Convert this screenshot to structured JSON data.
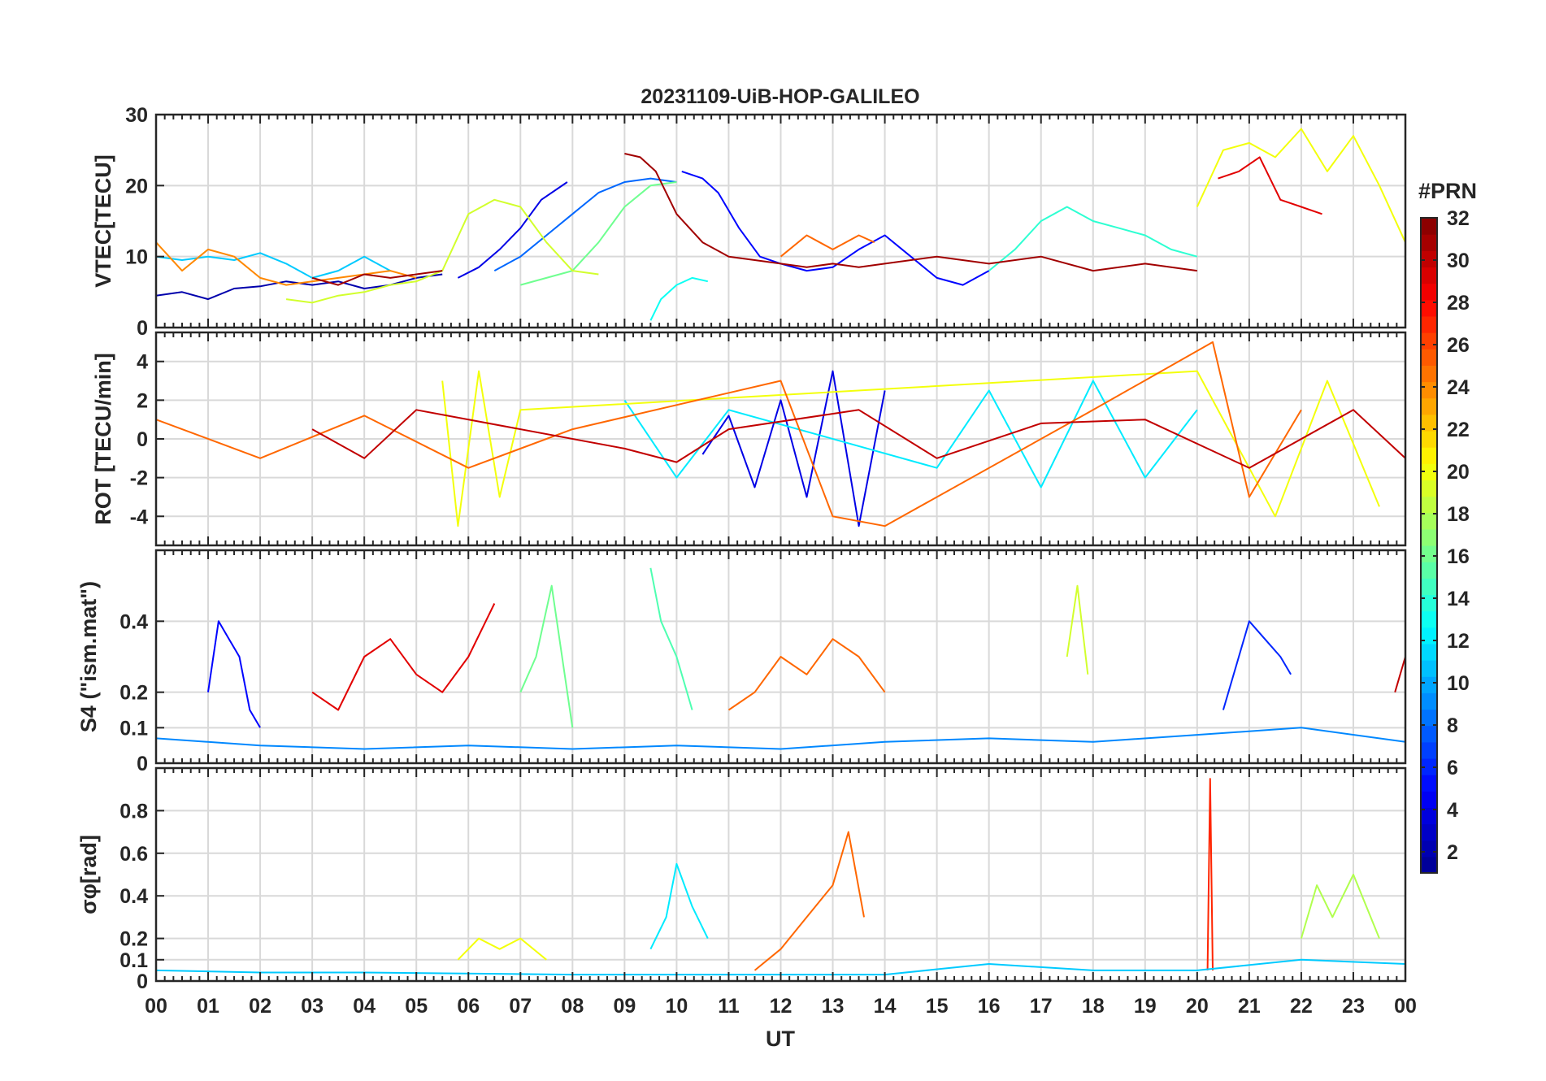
{
  "colors": {
    "axis": "#262626",
    "grid": "#d9d9d9",
    "background": "#ffffff",
    "colormap": [
      "#00008F",
      "#0000FF",
      "#0080FF",
      "#00FFFF",
      "#80FF80",
      "#FFFF00",
      "#FF8000",
      "#FF0000",
      "#800000"
    ]
  },
  "chart_data": [
    {
      "id": "vtec",
      "type": "line",
      "title": "20231109-UiB-HOP-GALILEO",
      "ylabel": "VTEC[TECU]",
      "xlim": [
        0,
        24
      ],
      "ylim": [
        0,
        30
      ],
      "yticks": [
        0,
        10,
        20,
        30
      ],
      "ytick_labels": [
        "0",
        "10",
        "20",
        "30"
      ],
      "series": [
        {
          "prn": 2,
          "x": [
            0.0,
            0.5,
            1.0,
            1.5,
            2.0,
            2.5,
            3.0,
            3.5,
            4.0,
            4.5,
            5.0,
            5.5
          ],
          "y": [
            4.5,
            5.0,
            4.0,
            5.5,
            5.8,
            6.5,
            6.0,
            6.5,
            5.5,
            6.0,
            7.0,
            7.5
          ]
        },
        {
          "prn": 4,
          "x": [
            5.8,
            6.2,
            6.6,
            7.0,
            7.4,
            7.9
          ],
          "y": [
            7.0,
            8.5,
            11.0,
            14.0,
            18.0,
            20.5
          ]
        },
        {
          "prn": 5,
          "x": [
            10.1,
            10.5,
            10.8,
            11.2,
            11.6,
            12.0,
            12.5,
            13.0,
            13.5,
            14.0,
            14.5,
            15.0,
            15.5,
            16.0
          ],
          "y": [
            22.0,
            21.0,
            19.0,
            14.0,
            10.0,
            9.0,
            8.0,
            8.5,
            11.0,
            13.0,
            10.0,
            7.0,
            6.0,
            8.0
          ]
        },
        {
          "prn": 8,
          "x": [
            6.5,
            7.0,
            7.5,
            8.0,
            8.5,
            9.0,
            9.5,
            10.0
          ],
          "y": [
            8.0,
            10.0,
            13.0,
            16.0,
            19.0,
            20.5,
            21.0,
            20.5
          ]
        },
        {
          "prn": 11,
          "x": [
            0.0,
            0.5,
            1.0,
            1.5,
            2.0,
            2.5,
            3.0,
            3.5,
            4.0,
            4.5
          ],
          "y": [
            10.0,
            9.5,
            10.0,
            9.5,
            10.5,
            9.0,
            7.0,
            8.0,
            10.0,
            8.0
          ]
        },
        {
          "prn": 13,
          "x": [
            9.5,
            9.7,
            10.0,
            10.3,
            10.6
          ],
          "y": [
            1.0,
            4.0,
            6.0,
            7.0,
            6.5
          ]
        },
        {
          "prn": 14,
          "x": [
            16.0,
            16.5,
            17.0,
            17.5,
            18.0,
            18.5,
            19.0,
            19.5,
            20.0
          ],
          "y": [
            8.0,
            11.0,
            15.0,
            17.0,
            15.0,
            14.0,
            13.0,
            11.0,
            10.0
          ]
        },
        {
          "prn": 16,
          "x": [
            7.0,
            7.5,
            8.0,
            8.5,
            9.0,
            9.5,
            10.0
          ],
          "y": [
            6.0,
            7.0,
            8.0,
            12.0,
            17.0,
            20.0,
            20.5
          ]
        },
        {
          "prn": 19,
          "x": [
            2.5,
            3.0,
            3.5,
            4.0,
            4.5,
            5.0,
            5.5,
            6.0,
            6.5,
            7.0,
            7.5,
            8.0,
            8.5
          ],
          "y": [
            4.0,
            3.5,
            4.5,
            5.0,
            6.0,
            6.5,
            8.0,
            16.0,
            18.0,
            17.0,
            12.0,
            8.0,
            7.5
          ]
        },
        {
          "prn": 20,
          "x": [
            20.0,
            20.5,
            21.0,
            21.5,
            22.0,
            22.5,
            23.0,
            23.5,
            24.0
          ],
          "y": [
            17.0,
            25.0,
            26.0,
            24.0,
            28.0,
            22.0,
            27.0,
            20.0,
            12.0
          ]
        },
        {
          "prn": 24,
          "x": [
            0.0,
            0.5,
            1.0,
            1.5,
            2.0,
            2.5,
            3.0,
            3.5,
            4.0,
            4.5,
            5.0
          ],
          "y": [
            12.0,
            8.0,
            11.0,
            10.0,
            7.0,
            6.0,
            6.5,
            7.0,
            7.5,
            8.0,
            7.0
          ]
        },
        {
          "prn": 25,
          "x": [
            12.0,
            12.5,
            13.0,
            13.5,
            13.8
          ],
          "y": [
            10.0,
            13.0,
            11.0,
            13.0,
            12.0
          ]
        },
        {
          "prn": 29,
          "x": [
            20.4,
            20.8,
            21.2,
            21.6,
            22.0,
            22.4
          ],
          "y": [
            21.0,
            22.0,
            24.0,
            18.0,
            17.0,
            16.0
          ]
        },
        {
          "prn": 31,
          "x": [
            9.0,
            9.3,
            9.6,
            10.0,
            10.5,
            11.0,
            11.5,
            12.0,
            12.5,
            13.0,
            13.5,
            14.0,
            15.0,
            16.0,
            17.0,
            18.0,
            19.0,
            20.0
          ],
          "y": [
            24.5,
            24.0,
            22.0,
            16.0,
            12.0,
            10.0,
            9.5,
            9.0,
            8.5,
            9.0,
            8.5,
            9.0,
            10.0,
            9.0,
            10.0,
            8.0,
            9.0,
            8.0
          ]
        },
        {
          "prn": 31,
          "x": [
            3.0,
            3.5,
            4.0,
            4.5,
            5.0,
            5.5
          ],
          "y": [
            7.0,
            6.0,
            7.5,
            7.0,
            7.5,
            8.0
          ]
        }
      ]
    },
    {
      "id": "rot",
      "type": "line",
      "ylabel": "ROT [TECU/min]",
      "xlim": [
        0,
        24
      ],
      "ylim": [
        -5.5,
        5.5
      ],
      "yticks": [
        -4,
        -2,
        0,
        2,
        4
      ],
      "ytick_labels": [
        "-4",
        "-2",
        "0",
        "2",
        "4"
      ],
      "series": [
        {
          "prn": 4,
          "x": [
            10.5,
            11.0,
            11.5,
            12.0,
            12.5,
            13.0,
            13.5,
            14.0
          ],
          "y": [
            -0.8,
            1.2,
            -2.5,
            2.0,
            -3.0,
            3.5,
            -4.5,
            2.5
          ]
        },
        {
          "prn": 12,
          "x": [
            9.0,
            10.0,
            11.0,
            15.0,
            16.0,
            17.0,
            18.0,
            19.0,
            20.0
          ],
          "y": [
            2.0,
            -2.0,
            1.5,
            -1.5,
            2.5,
            -2.5,
            3.0,
            -2.0,
            1.5
          ]
        },
        {
          "prn": 20,
          "x": [
            5.5,
            5.8,
            6.2,
            6.6,
            7.0,
            20.0,
            21.5,
            22.5,
            23.5
          ],
          "y": [
            3.0,
            -4.5,
            3.5,
            -3.0,
            1.5,
            3.5,
            -4.0,
            3.0,
            -3.5
          ]
        },
        {
          "prn": 25,
          "x": [
            0.0,
            2.0,
            4.0,
            6.0,
            8.0,
            12.0,
            13.0,
            14.0,
            18.0,
            20.3,
            21.0,
            22.0
          ],
          "y": [
            1.0,
            -1.0,
            1.2,
            -1.5,
            0.5,
            3.0,
            -4.0,
            -4.5,
            1.5,
            5.0,
            -3.0,
            1.5
          ]
        },
        {
          "prn": 30,
          "x": [
            3.0,
            4.0,
            5.0,
            9.0,
            10.0,
            11.0,
            13.5,
            15.0,
            17.0,
            19.0,
            21.0,
            23.0,
            24.0
          ],
          "y": [
            0.5,
            -1.0,
            1.5,
            -0.5,
            -1.2,
            0.5,
            1.5,
            -1.0,
            0.8,
            1.0,
            -1.5,
            1.5,
            -1.0
          ]
        }
      ]
    },
    {
      "id": "s4",
      "type": "line",
      "ylabel": "S4 (\"ism.mat\")",
      "xlim": [
        0,
        24
      ],
      "ylim": [
        0,
        0.6
      ],
      "yticks": [
        0,
        0.1,
        0.2,
        0.4
      ],
      "ytick_labels": [
        "0",
        "0.1",
        "0.2",
        "0.4"
      ],
      "series": [
        {
          "prn": 5,
          "x": [
            1.0,
            1.2,
            1.4,
            1.6,
            1.8,
            2.0
          ],
          "y": [
            0.2,
            0.4,
            0.35,
            0.3,
            0.15,
            0.1
          ]
        },
        {
          "prn": 29,
          "x": [
            3.0,
            3.5,
            4.0,
            4.5,
            5.0,
            5.5,
            6.0,
            6.5
          ],
          "y": [
            0.2,
            0.15,
            0.3,
            0.35,
            0.25,
            0.2,
            0.3,
            0.45
          ]
        },
        {
          "prn": 16,
          "x": [
            7.0,
            7.3,
            7.6,
            8.0
          ],
          "y": [
            0.2,
            0.3,
            0.5,
            0.1
          ]
        },
        {
          "prn": 15,
          "x": [
            9.5,
            9.7,
            10.0,
            10.3
          ],
          "y": [
            0.55,
            0.4,
            0.3,
            0.15
          ]
        },
        {
          "prn": 25,
          "x": [
            11.0,
            11.5,
            12.0,
            12.5,
            13.0,
            13.5,
            14.0
          ],
          "y": [
            0.15,
            0.2,
            0.3,
            0.25,
            0.35,
            0.3,
            0.2
          ]
        },
        {
          "prn": 19,
          "x": [
            17.5,
            17.7,
            17.9
          ],
          "y": [
            0.3,
            0.5,
            0.25
          ]
        },
        {
          "prn": 6,
          "x": [
            20.5,
            20.8,
            21.0,
            21.3,
            21.6,
            21.8
          ],
          "y": [
            0.15,
            0.3,
            0.4,
            0.35,
            0.3,
            0.25
          ]
        },
        {
          "prn": 30,
          "x": [
            23.8,
            24.0
          ],
          "y": [
            0.2,
            0.3
          ]
        },
        {
          "prn": 9,
          "x": [
            0.0,
            2.0,
            4.0,
            6.0,
            8.0,
            10.0,
            12.0,
            14.0,
            16.0,
            18.0,
            20.0,
            22.0,
            24.0
          ],
          "y": [
            0.07,
            0.05,
            0.04,
            0.05,
            0.04,
            0.05,
            0.04,
            0.06,
            0.07,
            0.06,
            0.08,
            0.1,
            0.06
          ]
        }
      ]
    },
    {
      "id": "sigma_phi",
      "type": "line",
      "ylabel": "σφ[rad]",
      "xlabel": "UT",
      "xlim": [
        0,
        24
      ],
      "ylim": [
        0,
        1.0
      ],
      "yticks": [
        0,
        0.1,
        0.2,
        0.4,
        0.6,
        0.8
      ],
      "ytick_labels": [
        "0",
        "0.1",
        "0.2",
        "0.4",
        "0.6",
        "0.8"
      ],
      "xtick_labels": [
        "00",
        "01",
        "02",
        "03",
        "04",
        "05",
        "06",
        "07",
        "08",
        "09",
        "10",
        "11",
        "12",
        "13",
        "14",
        "15",
        "16",
        "17",
        "18",
        "19",
        "20",
        "21",
        "22",
        "23",
        "00"
      ],
      "series": [
        {
          "prn": 12,
          "x": [
            9.5,
            9.8,
            10.0,
            10.3,
            10.6
          ],
          "y": [
            0.15,
            0.3,
            0.55,
            0.35,
            0.2
          ]
        },
        {
          "prn": 25,
          "x": [
            11.5,
            12.0,
            12.5,
            13.0,
            13.3,
            13.6
          ],
          "y": [
            0.05,
            0.15,
            0.3,
            0.45,
            0.7,
            0.3
          ]
        },
        {
          "prn": 27,
          "x": [
            20.2,
            20.25,
            20.3
          ],
          "y": [
            0.05,
            0.95,
            0.05
          ]
        },
        {
          "prn": 18,
          "x": [
            22.0,
            22.3,
            22.6,
            23.0,
            23.5
          ],
          "y": [
            0.2,
            0.45,
            0.3,
            0.5,
            0.2
          ]
        },
        {
          "prn": 20,
          "x": [
            5.8,
            6.2,
            6.6,
            7.0,
            7.5
          ],
          "y": [
            0.1,
            0.2,
            0.15,
            0.2,
            0.1
          ]
        },
        {
          "prn": 11,
          "x": [
            0.0,
            2.0,
            4.0,
            8.0,
            14.0,
            16.0,
            18.0,
            20.0,
            22.0,
            24.0
          ],
          "y": [
            0.05,
            0.04,
            0.04,
            0.03,
            0.03,
            0.08,
            0.05,
            0.05,
            0.1,
            0.08
          ]
        }
      ]
    }
  ],
  "colorbar": {
    "label": "#PRN",
    "min": 1,
    "max": 32,
    "tick_values": [
      2,
      4,
      6,
      8,
      10,
      12,
      14,
      16,
      18,
      20,
      22,
      24,
      26,
      28,
      30,
      32
    ],
    "tick_labels": [
      "2",
      "4",
      "6",
      "8",
      "10",
      "12",
      "14",
      "16",
      "18",
      "20",
      "22",
      "24",
      "26",
      "28",
      "30",
      "32"
    ]
  }
}
